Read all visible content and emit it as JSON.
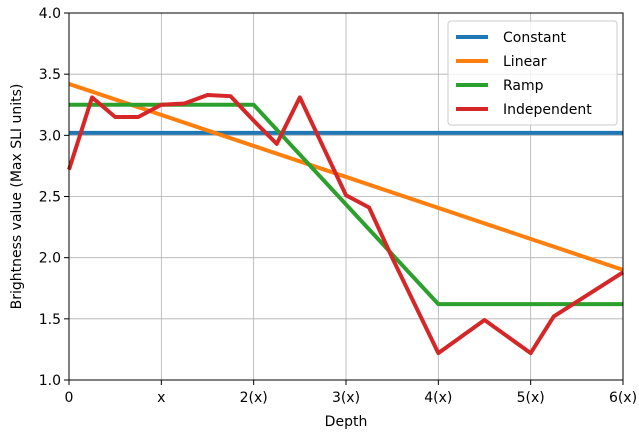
{
  "chart_data": {
    "type": "line",
    "xlabel": "Depth",
    "ylabel": "Brightness value (Max SLI units)",
    "xlim": [
      0,
      6
    ],
    "ylim": [
      1.0,
      4.0
    ],
    "x_ticks": [
      {
        "value": 0,
        "label": "0"
      },
      {
        "value": 1,
        "label": "x"
      },
      {
        "value": 2,
        "label": "2(x)"
      },
      {
        "value": 3,
        "label": "3(x)"
      },
      {
        "value": 4,
        "label": "4(x)"
      },
      {
        "value": 5,
        "label": "5(x)"
      },
      {
        "value": 6,
        "label": "6(x)"
      }
    ],
    "y_ticks": [
      {
        "value": 1.0,
        "label": "1.0"
      },
      {
        "value": 1.5,
        "label": "1.5"
      },
      {
        "value": 2.0,
        "label": "2.0"
      },
      {
        "value": 2.5,
        "label": "2.5"
      },
      {
        "value": 3.0,
        "label": "3.0"
      },
      {
        "value": 3.5,
        "label": "3.5"
      },
      {
        "value": 4.0,
        "label": "4.0"
      }
    ],
    "grid": true,
    "legend_position": "upper-right",
    "series": [
      {
        "name": "Constant",
        "color": "#1f77b4",
        "points": [
          [
            0,
            3.02
          ],
          [
            6,
            3.02
          ]
        ]
      },
      {
        "name": "Linear",
        "color": "#ff7f0e",
        "points": [
          [
            0,
            3.42
          ],
          [
            6,
            1.9
          ]
        ]
      },
      {
        "name": "Ramp",
        "color": "#2ca02c",
        "points": [
          [
            0,
            3.25
          ],
          [
            2,
            3.25
          ],
          [
            4,
            1.62
          ],
          [
            6,
            1.62
          ]
        ]
      },
      {
        "name": "Independent",
        "color": "#d62728",
        "points": [
          [
            0,
            2.72
          ],
          [
            0.25,
            3.31
          ],
          [
            0.5,
            3.15
          ],
          [
            0.75,
            3.15
          ],
          [
            1.0,
            3.25
          ],
          [
            1.25,
            3.26
          ],
          [
            1.5,
            3.33
          ],
          [
            1.75,
            3.32
          ],
          [
            2.0,
            3.12
          ],
          [
            2.25,
            2.93
          ],
          [
            2.5,
            3.31
          ],
          [
            3.0,
            2.51
          ],
          [
            3.25,
            2.41
          ],
          [
            3.5,
            2.0
          ],
          [
            4.0,
            1.22
          ],
          [
            4.5,
            1.49
          ],
          [
            5.0,
            1.22
          ],
          [
            5.25,
            1.52
          ],
          [
            6.0,
            1.88
          ]
        ]
      }
    ]
  }
}
